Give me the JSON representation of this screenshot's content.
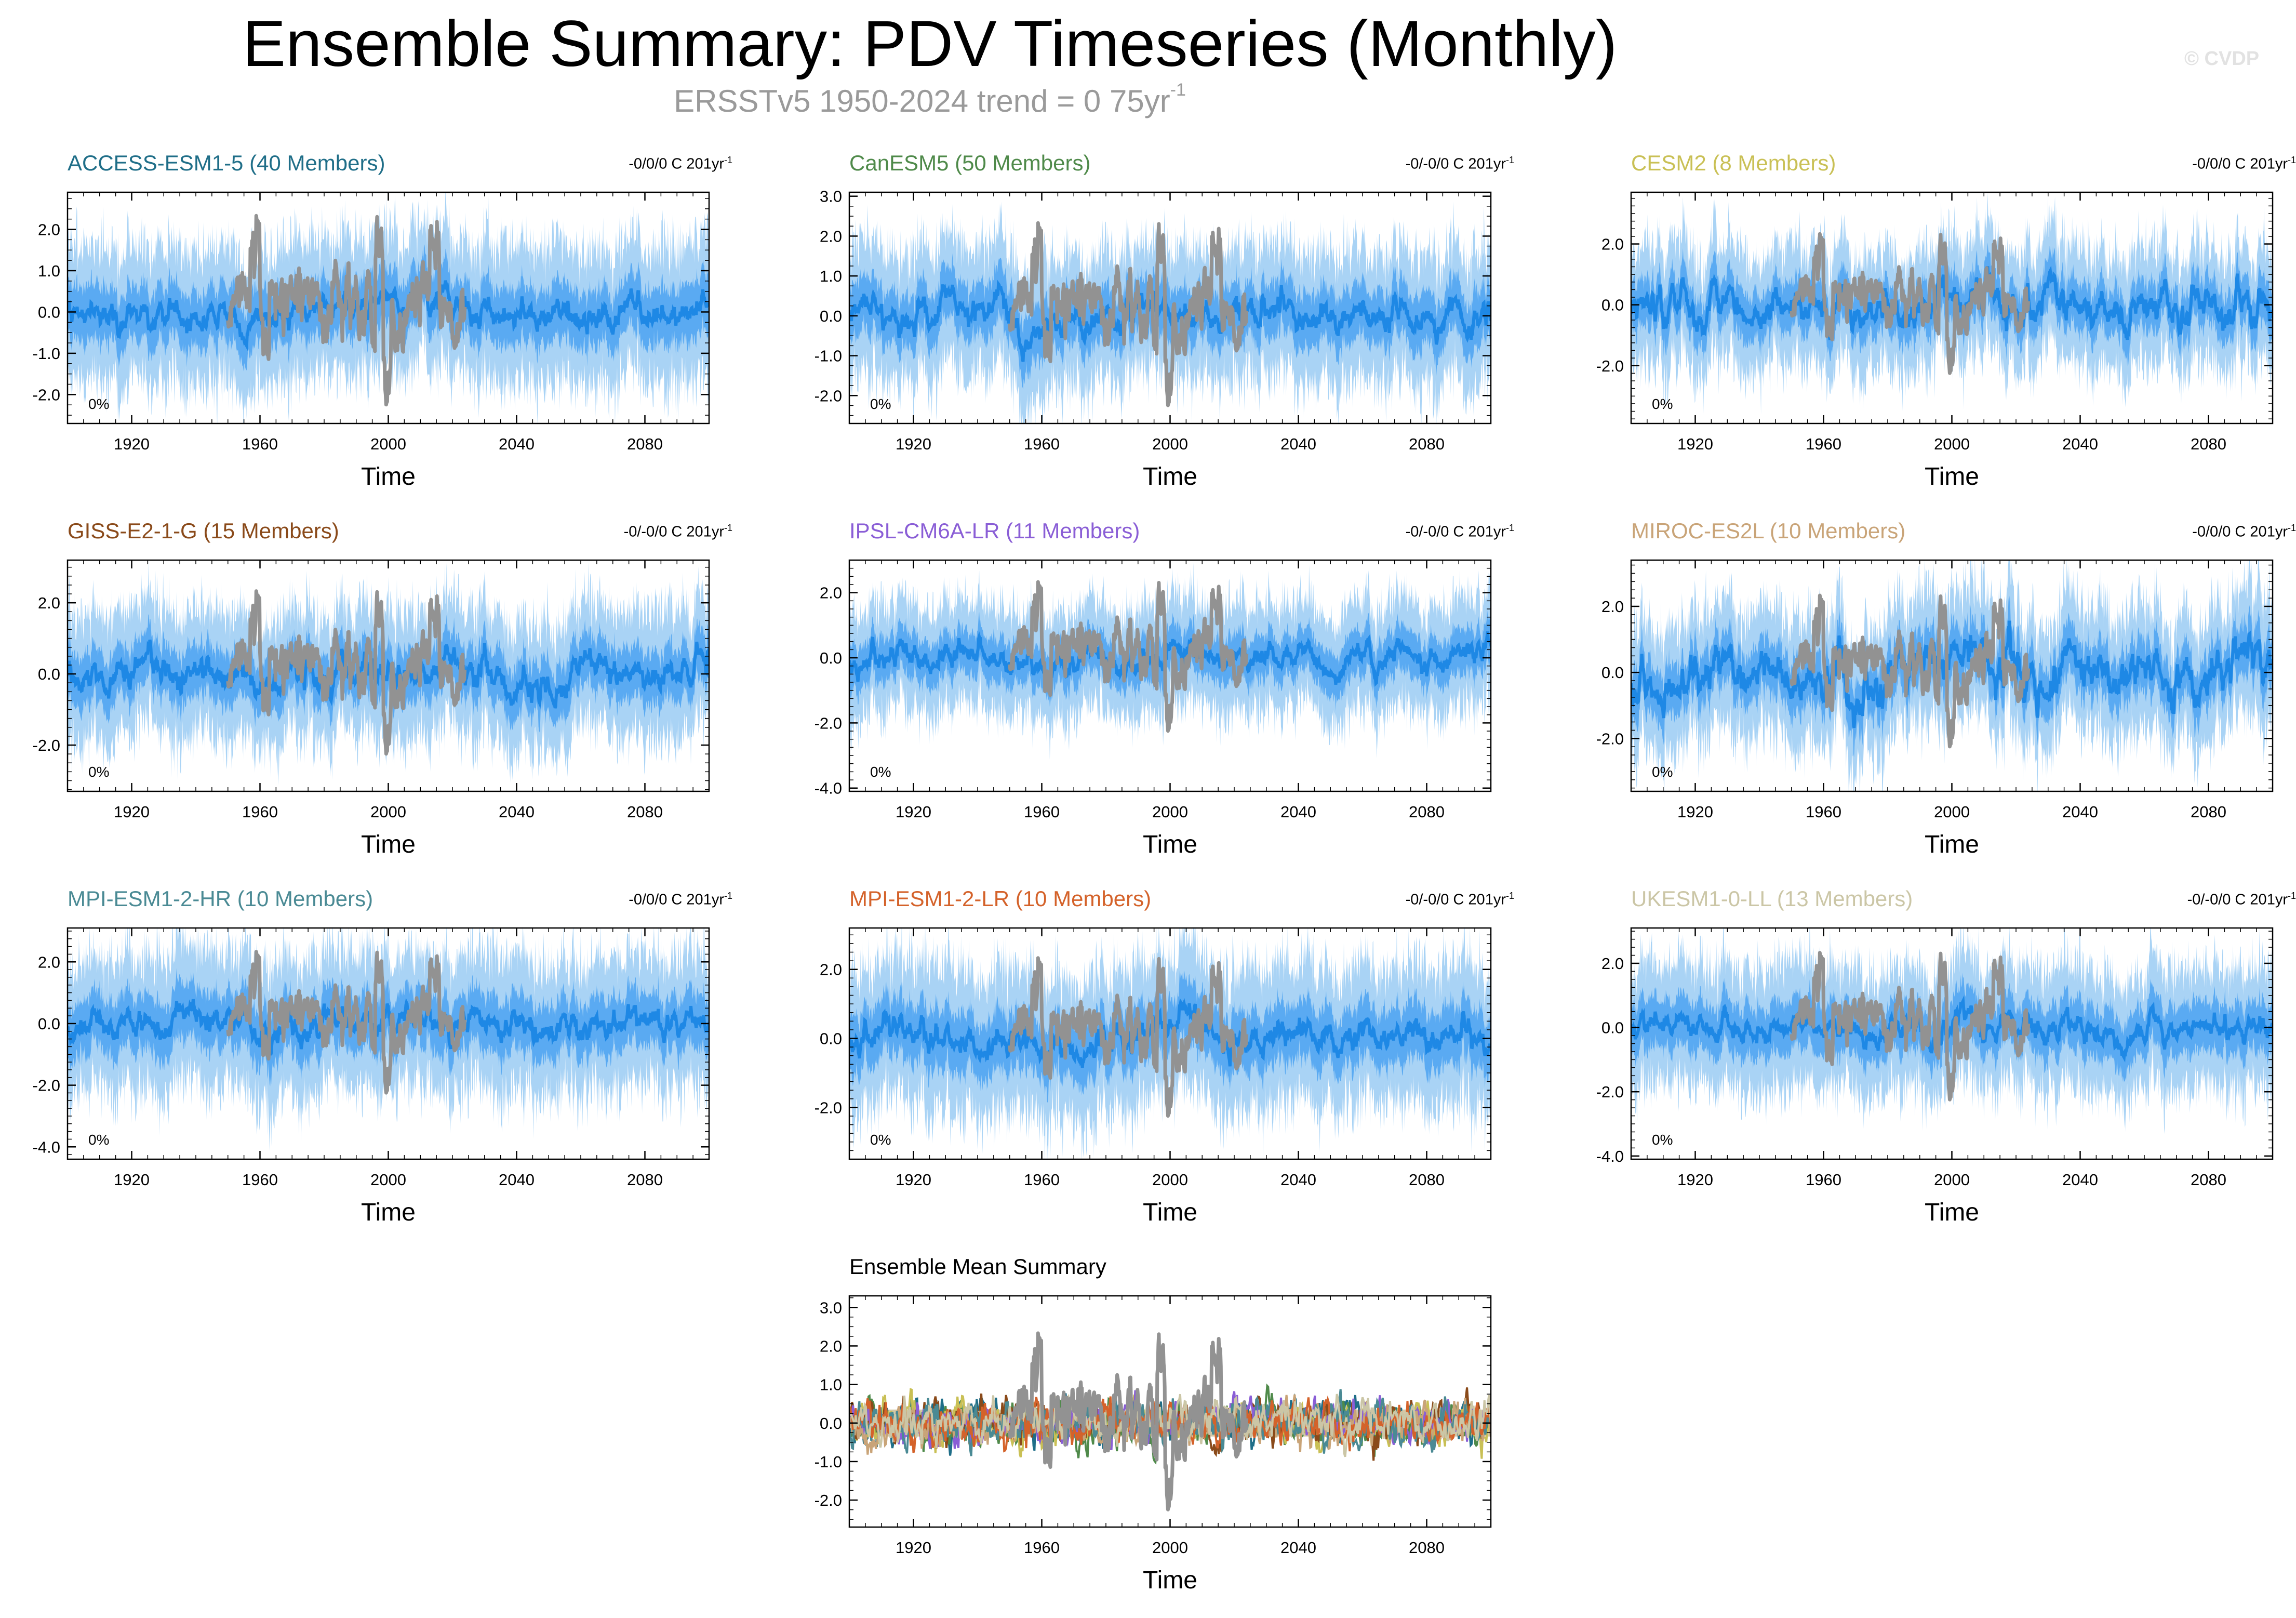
{
  "header": {
    "title": "Ensemble Summary: PDV Timeseries (Monthly)",
    "subtitle": "ERSSTv5 1950-2024 trend = 0 75yr",
    "subtitle_sup": "-1",
    "credit": "© CVDP"
  },
  "colors": {
    "observations": "#929292",
    "spread_outer": "#a9d3f5",
    "spread_inner": "#5aaaf2",
    "ensemble_mean": "#1e88e5",
    "neutral_band": "#d4c8a6"
  },
  "chart_data": [
    {
      "type": "line",
      "title": "ACCESS-ESM1-5 (40 Members)",
      "title_color": "#1f6e88",
      "trend": "-0/0/0 C 201yr",
      "trend_sup": "-1",
      "percent_label": "0%",
      "xlabel": "Time",
      "xlim": [
        1900,
        2100
      ],
      "xticks": [
        "1920",
        "1960",
        "2000",
        "2040",
        "2080"
      ],
      "ylim": [
        -2.7,
        2.9
      ],
      "yticks": [
        "-2.0",
        "-1.0",
        "0.0",
        "1.0",
        "2.0"
      ],
      "series": [
        {
          "name": "ensemble spread",
          "style": "band",
          "amplitude": 1.2
        },
        {
          "name": "ensemble mean",
          "amplitude": 0.4
        },
        {
          "name": "ERSSTv5 observations",
          "x_range": [
            1950,
            2024
          ]
        }
      ]
    },
    {
      "type": "line",
      "title": "CanESM5 (50 Members)",
      "title_color": "#4f8a4a",
      "trend": "-0/-0/0 C 201yr",
      "trend_sup": "-1",
      "percent_label": "0%",
      "xlabel": "Time",
      "xlim": [
        1900,
        2100
      ],
      "xticks": [
        "1920",
        "1960",
        "2000",
        "2040",
        "2080"
      ],
      "ylim": [
        -2.7,
        3.1
      ],
      "yticks": [
        "-2.0",
        "-1.0",
        "0.0",
        "1.0",
        "2.0",
        "3.0"
      ],
      "series": [
        {
          "name": "ensemble spread",
          "style": "band",
          "amplitude": 1.2
        },
        {
          "name": "ensemble mean",
          "amplitude": 0.45
        },
        {
          "name": "ERSSTv5 observations",
          "x_range": [
            1950,
            2024
          ]
        }
      ]
    },
    {
      "type": "line",
      "title": "CESM2 (8 Members)",
      "title_color": "#c9c055",
      "trend": "-0/0/0 C 201yr",
      "trend_sup": "-1",
      "percent_label": "0%",
      "xlabel": "Time",
      "xlim": [
        1900,
        2100
      ],
      "xticks": [
        "1920",
        "1960",
        "2000",
        "2040",
        "2080"
      ],
      "ylim": [
        -3.9,
        3.7
      ],
      "yticks": [
        "-2.0",
        "0.0",
        "2.0"
      ],
      "series": [
        {
          "name": "ensemble spread",
          "style": "band",
          "amplitude": 1.4
        },
        {
          "name": "ensemble mean",
          "amplitude": 0.7
        },
        {
          "name": "ERSSTv5 observations",
          "x_range": [
            1950,
            2024
          ]
        }
      ]
    },
    {
      "type": "line",
      "title": "GISS-E2-1-G (15 Members)",
      "title_color": "#8a4a1a",
      "trend": "-0/-0/0 C 201yr",
      "trend_sup": "-1",
      "percent_label": "0%",
      "xlabel": "Time",
      "xlim": [
        1900,
        2100
      ],
      "xticks": [
        "1920",
        "1960",
        "2000",
        "2040",
        "2080"
      ],
      "ylim": [
        -3.3,
        3.2
      ],
      "yticks": [
        "-2.0",
        "0.0",
        "2.0"
      ],
      "series": [
        {
          "name": "ensemble spread",
          "style": "band",
          "amplitude": 1.3
        },
        {
          "name": "ensemble mean",
          "amplitude": 0.5
        },
        {
          "name": "ERSSTv5 observations",
          "x_range": [
            1950,
            2024
          ]
        }
      ]
    },
    {
      "type": "line",
      "title": "IPSL-CM6A-LR (11 Members)",
      "title_color": "#8a5ed6",
      "trend": "-0/-0/0 C 201yr",
      "trend_sup": "-1",
      "percent_label": "0%",
      "xlabel": "Time",
      "xlim": [
        1900,
        2100
      ],
      "xticks": [
        "1920",
        "1960",
        "2000",
        "2040",
        "2080"
      ],
      "ylim": [
        -4.1,
        3.0
      ],
      "yticks": [
        "-4.0",
        "-2.0",
        "0.0",
        "2.0"
      ],
      "series": [
        {
          "name": "ensemble spread",
          "style": "band",
          "amplitude": 1.2
        },
        {
          "name": "ensemble mean",
          "amplitude": 0.45
        },
        {
          "name": "ERSSTv5 observations",
          "x_range": [
            1950,
            2024
          ]
        }
      ]
    },
    {
      "type": "line",
      "title": "MIROC-ES2L (10 Members)",
      "title_color": "#c9a478",
      "trend": "-0/0/0 C 201yr",
      "trend_sup": "-1",
      "percent_label": "0%",
      "xlabel": "Time",
      "xlim": [
        1900,
        2100
      ],
      "xticks": [
        "1920",
        "1960",
        "2000",
        "2040",
        "2080"
      ],
      "ylim": [
        -3.6,
        3.4
      ],
      "yticks": [
        "-2.0",
        "0.0",
        "2.0"
      ],
      "series": [
        {
          "name": "ensemble spread",
          "style": "band",
          "amplitude": 1.4
        },
        {
          "name": "ensemble mean",
          "amplitude": 0.8
        },
        {
          "name": "ERSSTv5 observations",
          "x_range": [
            1950,
            2024
          ]
        }
      ]
    },
    {
      "type": "line",
      "title": "MPI-ESM1-2-HR (10 Members)",
      "title_color": "#4a8a94",
      "trend": "-0/0/0 C 201yr",
      "trend_sup": "-1",
      "percent_label": "0%",
      "xlabel": "Time",
      "xlim": [
        1900,
        2100
      ],
      "xticks": [
        "1920",
        "1960",
        "2000",
        "2040",
        "2080"
      ],
      "ylim": [
        -4.4,
        3.1
      ],
      "yticks": [
        "-4.0",
        "-2.0",
        "0.0",
        "2.0"
      ],
      "series": [
        {
          "name": "ensemble spread",
          "style": "band",
          "amplitude": 1.6
        },
        {
          "name": "ensemble mean",
          "amplitude": 0.5
        },
        {
          "name": "ERSSTv5 observations",
          "x_range": [
            1950,
            2024
          ]
        }
      ]
    },
    {
      "type": "line",
      "title": "MPI-ESM1-2-LR (10 Members)",
      "title_color": "#d4622a",
      "trend": "-0/-0/0 C 201yr",
      "trend_sup": "-1",
      "percent_label": "0%",
      "xlabel": "Time",
      "xlim": [
        1900,
        2100
      ],
      "xticks": [
        "1920",
        "1960",
        "2000",
        "2040",
        "2080"
      ],
      "ylim": [
        -3.5,
        3.2
      ],
      "yticks": [
        "-2.0",
        "0.0",
        "2.0"
      ],
      "series": [
        {
          "name": "ensemble spread",
          "style": "band",
          "amplitude": 1.5
        },
        {
          "name": "ensemble mean",
          "amplitude": 0.5
        },
        {
          "name": "ERSSTv5 observations",
          "x_range": [
            1950,
            2024
          ]
        }
      ]
    },
    {
      "type": "line",
      "title": "UKESM1-0-LL (13 Members)",
      "title_color": "#cbc6a6",
      "trend": "-0/-0/0 C 201yr",
      "trend_sup": "-1",
      "percent_label": "0%",
      "xlabel": "Time",
      "xlim": [
        1900,
        2100
      ],
      "xticks": [
        "1920",
        "1960",
        "2000",
        "2040",
        "2080"
      ],
      "ylim": [
        -4.1,
        3.1
      ],
      "yticks": [
        "-4.0",
        "-2.0",
        "0.0",
        "2.0"
      ],
      "series": [
        {
          "name": "ensemble spread",
          "style": "band",
          "amplitude": 1.4
        },
        {
          "name": "ensemble mean",
          "amplitude": 0.45
        },
        {
          "name": "ERSSTv5 observations",
          "x_range": [
            1950,
            2024
          ]
        }
      ]
    },
    {
      "type": "line",
      "title": "Ensemble Mean Summary",
      "title_color": "#000000",
      "trend": "",
      "trend_sup": "",
      "percent_label": "",
      "xlabel": "Time",
      "xlim": [
        1900,
        2100
      ],
      "xticks": [
        "1920",
        "1960",
        "2000",
        "2040",
        "2080"
      ],
      "ylim": [
        -2.7,
        3.3
      ],
      "yticks": [
        "-2.0",
        "-1.0",
        "0.0",
        "1.0",
        "2.0",
        "3.0"
      ],
      "series": [
        {
          "name": "ACCESS-ESM1-5",
          "color": "#1f6e88"
        },
        {
          "name": "CanESM5",
          "color": "#4f8a4a"
        },
        {
          "name": "CESM2",
          "color": "#c9c055"
        },
        {
          "name": "GISS-E2-1-G",
          "color": "#8a4a1a"
        },
        {
          "name": "IPSL-CM6A-LR",
          "color": "#8a5ed6"
        },
        {
          "name": "MIROC-ES2L",
          "color": "#c9a478"
        },
        {
          "name": "MPI-ESM1-2-HR",
          "color": "#4a8a94"
        },
        {
          "name": "MPI-ESM1-2-LR",
          "color": "#d4622a"
        },
        {
          "name": "UKESM1-0-LL",
          "color": "#cbc6a6"
        },
        {
          "name": "ERSSTv5 observations",
          "color": "#929292",
          "x_range": [
            1950,
            2024
          ]
        }
      ]
    }
  ]
}
